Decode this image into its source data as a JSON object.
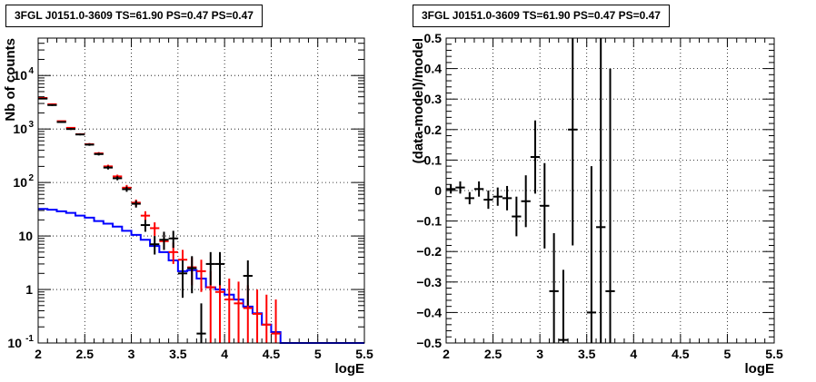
{
  "chart_data": [
    {
      "type": "line",
      "title": "3FGL J0151.0-3609 TS=61.90 PS=0.47 PS=0.47",
      "xlabel": "logE",
      "ylabel": "Nb of counts",
      "xlim": [
        2,
        5.5
      ],
      "ylim": [
        0.1,
        50000
      ],
      "yscale": "log",
      "grid": true,
      "x_ticks": [
        "2",
        "2.5",
        "3",
        "3.5",
        "4",
        "4.5",
        "5",
        "5.5"
      ],
      "y_ticks": [
        {
          "value": 0.1,
          "label": "10",
          "exp": "-1"
        },
        {
          "value": 1,
          "label": "1",
          "exp": ""
        },
        {
          "value": 10,
          "label": "10",
          "exp": ""
        },
        {
          "value": 100,
          "label": "10",
          "exp": "2"
        },
        {
          "value": 1000,
          "label": "10",
          "exp": "3"
        },
        {
          "value": 10000,
          "label": "10",
          "exp": "4"
        }
      ],
      "series": [
        {
          "kind": "histogram",
          "color": "#0000ff",
          "bin_edges": [
            2.0,
            2.1,
            2.2,
            2.3,
            2.4,
            2.5,
            2.6,
            2.7,
            2.8,
            2.9,
            3.0,
            3.1,
            3.2,
            3.3,
            3.4,
            3.5,
            3.6,
            3.7,
            3.8,
            3.9,
            4.0,
            4.1,
            4.2,
            4.3,
            4.4,
            4.5,
            4.6,
            4.7,
            4.8,
            4.9,
            5.0,
            5.1,
            5.2,
            5.3,
            5.4,
            5.5
          ],
          "values": [
            32,
            31,
            29,
            27,
            24,
            22,
            19,
            17,
            15,
            12.5,
            10.5,
            8.5,
            6.5,
            5,
            3.5,
            2.2,
            2.3,
            1.6,
            1.1,
            1.0,
            0.8,
            0.65,
            0.48,
            0.36,
            0.22,
            0.16,
            0.1,
            0.1,
            0.1,
            0.1,
            0.1,
            0.1,
            0.1,
            0.1,
            0.1
          ]
        },
        {
          "kind": "errorbar",
          "color": "#ff0000",
          "points": [
            {
              "x": 2.05,
              "y": 3800,
              "ylo": 3800,
              "yhi": 3800
            },
            {
              "x": 2.15,
              "y": 2900,
              "ylo": 2900,
              "yhi": 2900
            },
            {
              "x": 2.25,
              "y": 1400,
              "ylo": 1400,
              "yhi": 1400
            },
            {
              "x": 2.35,
              "y": 1050,
              "ylo": 1050,
              "yhi": 1050
            },
            {
              "x": 2.45,
              "y": 800,
              "ylo": 780,
              "yhi": 830
            },
            {
              "x": 2.55,
              "y": 520,
              "ylo": 500,
              "yhi": 545
            },
            {
              "x": 2.65,
              "y": 350,
              "ylo": 335,
              "yhi": 370
            },
            {
              "x": 2.75,
              "y": 200,
              "ylo": 185,
              "yhi": 215
            },
            {
              "x": 2.85,
              "y": 130,
              "ylo": 120,
              "yhi": 140
            },
            {
              "x": 2.95,
              "y": 80,
              "ylo": 72,
              "yhi": 90
            },
            {
              "x": 3.05,
              "y": 42,
              "ylo": 36,
              "yhi": 48
            },
            {
              "x": 3.15,
              "y": 24,
              "ylo": 19,
              "yhi": 29
            },
            {
              "x": 3.25,
              "y": 14,
              "ylo": 10,
              "yhi": 18
            },
            {
              "x": 3.35,
              "y": 8,
              "ylo": 5.5,
              "yhi": 11
            },
            {
              "x": 3.45,
              "y": 5,
              "ylo": 3,
              "yhi": 7.5
            },
            {
              "x": 3.55,
              "y": 3.6,
              "ylo": 2,
              "yhi": 5.5
            },
            {
              "x": 3.65,
              "y": 2.6,
              "ylo": 1.2,
              "yhi": 4
            },
            {
              "x": 3.75,
              "y": 2.2,
              "ylo": 0.9,
              "yhi": 3.6
            },
            {
              "x": 3.85,
              "y": 1.1,
              "ylo": 0.1,
              "yhi": 2.2
            },
            {
              "x": 3.95,
              "y": 0.9,
              "ylo": 0.1,
              "yhi": 1.9
            },
            {
              "x": 4.05,
              "y": 0.65,
              "ylo": 0.1,
              "yhi": 1.6
            },
            {
              "x": 4.15,
              "y": 0.55,
              "ylo": 0.1,
              "yhi": 1.4
            },
            {
              "x": 4.25,
              "y": 0.45,
              "ylo": 0.1,
              "yhi": 1.2
            },
            {
              "x": 4.35,
              "y": 0.35,
              "ylo": 0.1,
              "yhi": 1.0
            },
            {
              "x": 4.45,
              "y": 0.22,
              "ylo": 0.1,
              "yhi": 0.8
            },
            {
              "x": 4.55,
              "y": 0.15,
              "ylo": 0.1,
              "yhi": 0.65
            }
          ]
        },
        {
          "kind": "errorbar",
          "color": "#000000",
          "points": [
            {
              "x": 2.05,
              "y": 3700,
              "ylo": 3600,
              "yhi": 3800
            },
            {
              "x": 2.15,
              "y": 2800,
              "ylo": 2700,
              "yhi": 2900
            },
            {
              "x": 2.25,
              "y": 1350,
              "ylo": 1300,
              "yhi": 1400
            },
            {
              "x": 2.35,
              "y": 1000,
              "ylo": 960,
              "yhi": 1040
            },
            {
              "x": 2.45,
              "y": 790,
              "ylo": 760,
              "yhi": 820
            },
            {
              "x": 2.55,
              "y": 510,
              "ylo": 485,
              "yhi": 535
            },
            {
              "x": 2.65,
              "y": 340,
              "ylo": 320,
              "yhi": 360
            },
            {
              "x": 2.75,
              "y": 190,
              "ylo": 175,
              "yhi": 205
            },
            {
              "x": 2.85,
              "y": 120,
              "ylo": 110,
              "yhi": 131
            },
            {
              "x": 2.95,
              "y": 75,
              "ylo": 67,
              "yhi": 84
            },
            {
              "x": 3.05,
              "y": 40,
              "ylo": 34,
              "yhi": 46
            },
            {
              "x": 3.15,
              "y": 16,
              "ylo": 12,
              "yhi": 20
            },
            {
              "x": 3.25,
              "y": 7,
              "ylo": 4.5,
              "yhi": 10
            },
            {
              "x": 3.35,
              "y": 8.5,
              "ylo": 5.5,
              "yhi": 12
            },
            {
              "x": 3.45,
              "y": 9,
              "ylo": 6,
              "yhi": 12.5
            },
            {
              "x": 3.55,
              "y": 2,
              "ylo": 0.7,
              "yhi": 3.5
            },
            {
              "x": 3.65,
              "y": 2.5,
              "ylo": 0.85,
              "yhi": 4.2
            },
            {
              "x": 3.75,
              "y": 0.15,
              "ylo": 0.1,
              "yhi": 0.55
            },
            {
              "x": 3.85,
              "y": 3,
              "ylo": 1.2,
              "yhi": 5
            },
            {
              "x": 3.95,
              "y": 3,
              "ylo": 1.2,
              "yhi": 5
            },
            {
              "x": 4.25,
              "y": 1.8,
              "ylo": 0.5,
              "yhi": 3.5
            }
          ]
        }
      ]
    },
    {
      "type": "scatter",
      "title": "3FGL J0151.0-3609 TS=61.90 PS=0.47 PS=0.47",
      "xlabel": "logE",
      "ylabel": "(data-model)/model",
      "xlim": [
        2,
        5.5
      ],
      "ylim": [
        -0.5,
        0.5
      ],
      "grid": true,
      "x_ticks": [
        "2",
        "2.5",
        "3",
        "3.5",
        "4",
        "4.5",
        "5",
        "5.5"
      ],
      "y_ticks": [
        {
          "value": -0.5,
          "label": "−0.5"
        },
        {
          "value": -0.4,
          "label": "−0.4"
        },
        {
          "value": -0.3,
          "label": "−0.3"
        },
        {
          "value": -0.2,
          "label": "−0.2"
        },
        {
          "value": -0.1,
          "label": "−0.1"
        },
        {
          "value": 0,
          "label": "0"
        },
        {
          "value": 0.1,
          "label": "0.1"
        },
        {
          "value": 0.2,
          "label": "0.2"
        },
        {
          "value": 0.3,
          "label": "0.3"
        },
        {
          "value": 0.4,
          "label": "0.4"
        },
        {
          "value": 0.5,
          "label": "0.5"
        }
      ],
      "series": [
        {
          "kind": "errorbar",
          "color": "#000000",
          "points": [
            {
              "x": 2.05,
              "y": 0.005,
              "ylo": -0.01,
              "yhi": 0.02
            },
            {
              "x": 2.15,
              "y": 0.01,
              "ylo": -0.01,
              "yhi": 0.03
            },
            {
              "x": 2.25,
              "y": -0.025,
              "ylo": -0.045,
              "yhi": -0.005
            },
            {
              "x": 2.35,
              "y": 0.005,
              "ylo": -0.02,
              "yhi": 0.03
            },
            {
              "x": 2.45,
              "y": -0.03,
              "ylo": -0.06,
              "yhi": 0.0
            },
            {
              "x": 2.55,
              "y": -0.02,
              "ylo": -0.05,
              "yhi": 0.01
            },
            {
              "x": 2.65,
              "y": -0.025,
              "ylo": -0.065,
              "yhi": 0.015
            },
            {
              "x": 2.75,
              "y": -0.085,
              "ylo": -0.15,
              "yhi": -0.02
            },
            {
              "x": 2.85,
              "y": -0.035,
              "ylo": -0.12,
              "yhi": 0.05
            },
            {
              "x": 2.95,
              "y": 0.11,
              "ylo": -0.01,
              "yhi": 0.23
            },
            {
              "x": 3.05,
              "y": -0.05,
              "ylo": -0.19,
              "yhi": 0.09
            },
            {
              "x": 3.15,
              "y": -0.33,
              "ylo": -0.5,
              "yhi": -0.14
            },
            {
              "x": 3.25,
              "y": -0.49,
              "ylo": -0.5,
              "yhi": -0.26
            },
            {
              "x": 3.35,
              "y": 0.2,
              "ylo": -0.18,
              "yhi": 0.5
            },
            {
              "x": 3.55,
              "y": -0.4,
              "ylo": -0.5,
              "yhi": 0.08
            },
            {
              "x": 3.65,
              "y": -0.12,
              "ylo": -0.5,
              "yhi": 0.5
            },
            {
              "x": 3.75,
              "y": -0.33,
              "ylo": -0.5,
              "yhi": 0.4
            }
          ]
        }
      ]
    }
  ]
}
